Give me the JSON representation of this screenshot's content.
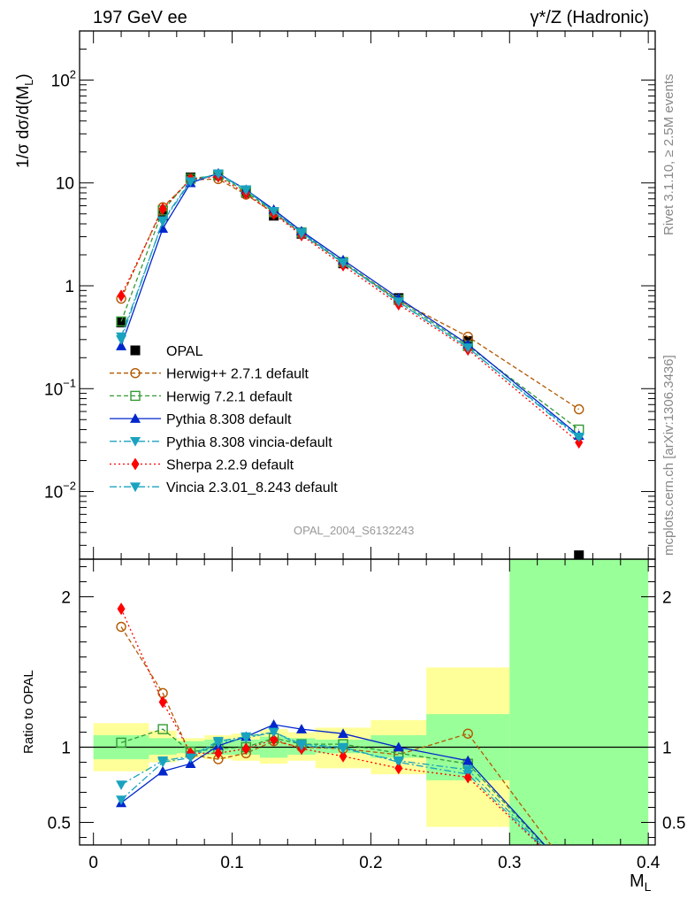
{
  "header": {
    "left": "197 GeV ee",
    "right": "γ*/Z (Hadronic)"
  },
  "side_labels": {
    "rivet": "Rivet 3.1.10, ≥ 2.5M events",
    "mcplots": "mcplots.cern.ch [arXiv:1306.3436]"
  },
  "watermark": "OPAL_2004_S6132243",
  "axis_titles": {
    "main_y": "1/σ dσ/d(M",
    "main_y_sub": "L",
    "main_y_close": ")",
    "ratio_y": "Ratio to OPAL",
    "x": "M",
    "x_sub": "L"
  },
  "colors": {
    "opal": "#000000",
    "herwigpp": "#b35900",
    "herwig7": "#339933",
    "pythia": "#0026cc",
    "pythia_vincia": "#1aa3bf",
    "sherpa": "#ff0000",
    "vincia": "#1aa3bf",
    "band_inner": "#99ff99",
    "band_outer": "#ffff99"
  },
  "chart_data": [
    {
      "type": "line",
      "panel": "main",
      "ylog": true,
      "xlim": [
        -0.01,
        0.405
      ],
      "ylim": [
        0.0022,
        300
      ],
      "xticks": [
        0,
        0.1,
        0.2,
        0.3,
        0.4
      ],
      "xtick_labels": [
        "0",
        "0.1",
        "0.2",
        "0.3",
        "0.4"
      ],
      "yticks": [
        0.01,
        0.1,
        1,
        10,
        100
      ],
      "ytick_labels": [
        {
          "base": "10",
          "exp": "−2"
        },
        {
          "base": "10",
          "exp": "−1"
        },
        {
          "base": "1",
          "exp": ""
        },
        {
          "base": "10",
          "exp": ""
        },
        {
          "base": "10",
          "exp": "2"
        }
      ],
      "x": [
        0.02,
        0.05,
        0.07,
        0.09,
        0.11,
        0.13,
        0.15,
        0.18,
        0.22,
        0.27,
        0.35
      ],
      "series": [
        {
          "name": "OPAL",
          "key": "opal",
          "style": "data",
          "values": [
            0.44,
            4.8,
            11.3,
            11.8,
            8.0,
            4.8,
            3.2,
            1.65,
            0.76,
            0.29,
            0.0024
          ]
        },
        {
          "name": "Herwig++ 2.7.1 default",
          "key": "herwigpp",
          "marker": "circle-open",
          "dash": "5,3",
          "values": [
            0.75,
            5.8,
            10.7,
            10.9,
            7.7,
            5.1,
            3.2,
            1.66,
            0.72,
            0.32,
            0.063
          ]
        },
        {
          "name": "Herwig 7.2.1 default",
          "key": "herwig7",
          "marker": "square-open",
          "dash": "5,3",
          "values": [
            0.45,
            5.4,
            11.0,
            11.9,
            8.2,
            5.2,
            3.3,
            1.7,
            0.73,
            0.26,
            0.04
          ]
        },
        {
          "name": "Pythia 8.308 default",
          "key": "pythia",
          "marker": "triangle-up",
          "dash": "",
          "values": [
            0.26,
            3.6,
            10.0,
            12.4,
            8.6,
            5.5,
            3.4,
            1.78,
            0.76,
            0.27,
            0.035
          ]
        },
        {
          "name": "Pythia 8.308 vincia-default",
          "key": "pythia_vincia",
          "marker": "triangle-down",
          "dash": "8,3,2,3",
          "values": [
            0.3,
            4.3,
            10.5,
            12.3,
            8.6,
            5.3,
            3.3,
            1.68,
            0.69,
            0.25,
            0.033
          ]
        },
        {
          "name": "Sherpa 2.2.9 default",
          "key": "sherpa",
          "marker": "diamond",
          "dash": "2,3",
          "values": [
            0.8,
            5.6,
            10.9,
            11.5,
            7.9,
            5.0,
            3.1,
            1.58,
            0.66,
            0.24,
            0.03
          ]
        },
        {
          "name": "Vincia 2.3.01_8.243 default",
          "key": "vincia",
          "marker": "triangle-down",
          "dash": "8,3,2,3",
          "values": [
            0.32,
            4.2,
            10.3,
            12.2,
            8.5,
            5.3,
            3.2,
            1.66,
            0.7,
            0.25,
            0.034
          ]
        }
      ]
    },
    {
      "type": "line",
      "panel": "ratio",
      "ylim": [
        0.35,
        2.25
      ],
      "xlim": [
        -0.01,
        0.405
      ],
      "yticks": [
        0.5,
        1,
        2
      ],
      "ytick_labels": [
        "0.5",
        "1",
        "2"
      ],
      "bands": {
        "edges": [
          0.0,
          0.04,
          0.06,
          0.08,
          0.1,
          0.12,
          0.14,
          0.16,
          0.2,
          0.24,
          0.3,
          0.4
        ],
        "inner_lo": [
          0.92,
          0.95,
          0.96,
          0.95,
          0.95,
          0.93,
          0.95,
          0.96,
          0.93,
          0.78,
          0.35
        ],
        "inner_hi": [
          1.08,
          1.06,
          1.04,
          1.05,
          1.05,
          1.07,
          1.06,
          1.05,
          1.08,
          1.22,
          2.25
        ],
        "outer_lo": [
          0.84,
          0.9,
          0.93,
          0.92,
          0.91,
          0.89,
          0.91,
          0.86,
          0.82,
          0.47,
          0.35
        ],
        "outer_hi": [
          1.16,
          1.11,
          1.06,
          1.08,
          1.09,
          1.12,
          1.1,
          1.13,
          1.18,
          1.53,
          2.25
        ]
      },
      "x": [
        0.02,
        0.05,
        0.07,
        0.09,
        0.11,
        0.13,
        0.15,
        0.18,
        0.22,
        0.27,
        0.35
      ],
      "series": [
        {
          "key": "herwigpp",
          "marker": "circle-open",
          "dash": "5,3",
          "values": [
            1.8,
            1.36,
            0.95,
            0.92,
            0.96,
            1.04,
            1.0,
            0.99,
            0.95,
            1.09,
            0.1
          ]
        },
        {
          "key": "herwig7",
          "marker": "square-open",
          "dash": "5,3",
          "values": [
            1.03,
            1.12,
            0.97,
            0.99,
            1.0,
            1.06,
            1.02,
            1.02,
            0.96,
            0.89,
            0.1
          ]
        },
        {
          "key": "pythia",
          "marker": "triangle-up",
          "dash": "",
          "values": [
            0.63,
            0.84,
            0.89,
            1.01,
            1.07,
            1.15,
            1.12,
            1.09,
            1.0,
            0.91,
            0.1
          ]
        },
        {
          "key": "pythia_vincia",
          "marker": "triangle-down",
          "dash": "8,3,2,3",
          "values": [
            0.75,
            0.91,
            0.94,
            1.04,
            1.07,
            1.1,
            1.02,
            1.0,
            0.9,
            0.82,
            0.1
          ]
        },
        {
          "key": "sherpa",
          "marker": "diamond",
          "dash": "2,3",
          "values": [
            1.92,
            1.3,
            0.96,
            0.96,
            0.99,
            1.05,
            0.99,
            0.94,
            0.86,
            0.8,
            0.1
          ]
        },
        {
          "key": "vincia",
          "marker": "triangle-down",
          "dash": "8,3,2,3",
          "values": [
            0.65,
            0.9,
            0.93,
            1.03,
            1.06,
            1.1,
            1.01,
            0.99,
            0.91,
            0.85,
            0.1
          ]
        }
      ]
    }
  ]
}
